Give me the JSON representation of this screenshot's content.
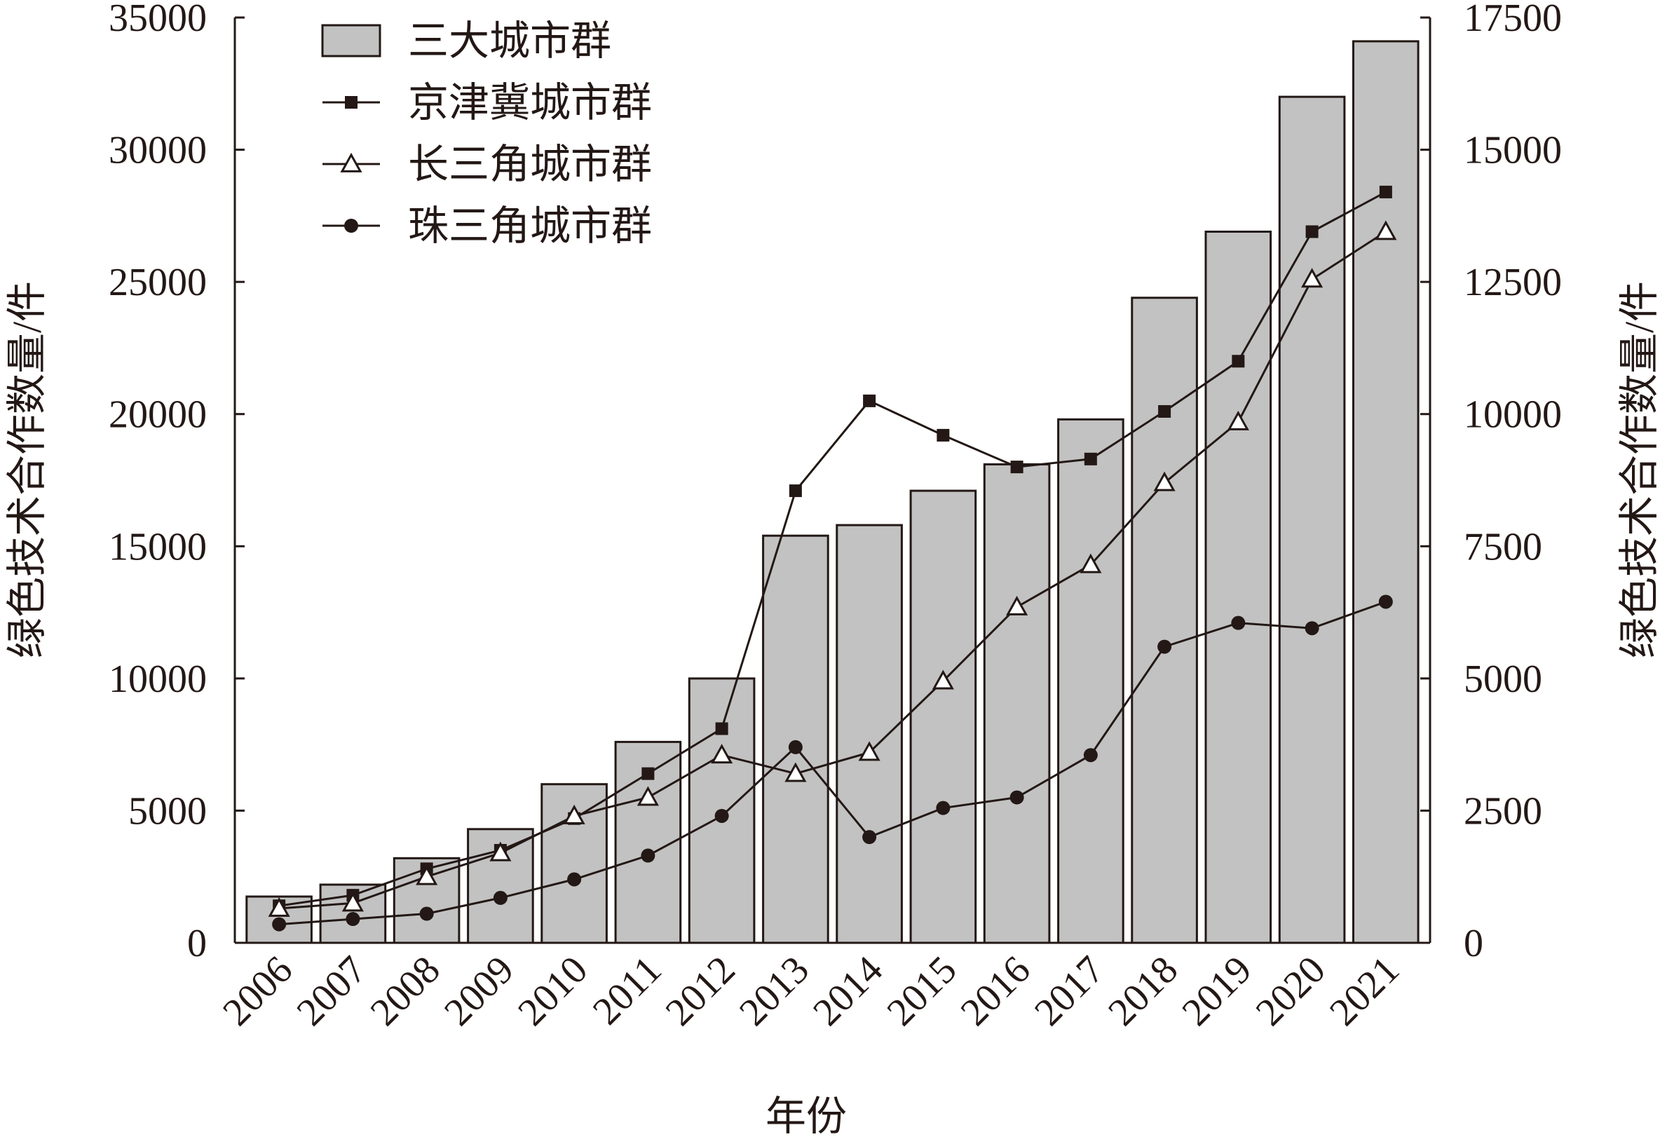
{
  "chart_data": {
    "type": "bar+line",
    "title": "",
    "xlabel": "年份",
    "ylabel_left": "绿色技术合作数量/件",
    "ylabel_right": "绿色技术合作数量/件",
    "categories": [
      "2006",
      "2007",
      "2008",
      "2009",
      "2010",
      "2011",
      "2012",
      "2013",
      "2014",
      "2015",
      "2016",
      "2017",
      "2018",
      "2019",
      "2020",
      "2021"
    ],
    "left_axis": {
      "ylim": [
        0,
        35000
      ],
      "ticks": [
        "0",
        "5000",
        "10000",
        "15000",
        "20000",
        "25000",
        "30000",
        "35000"
      ]
    },
    "right_axis": {
      "ylim": [
        0,
        17500
      ],
      "ticks": [
        "0",
        "2500",
        "5000",
        "7500",
        "10000",
        "12500",
        "15000",
        "17500"
      ]
    },
    "grid": false,
    "legend_position": "top-left",
    "series": [
      {
        "name": "三大城市群",
        "type": "bar",
        "axis": "left",
        "marker": "none",
        "color": "#c2c2c2",
        "values": [
          1750,
          2200,
          3200,
          4300,
          6000,
          7600,
          10000,
          15400,
          15800,
          17100,
          18100,
          19800,
          24400,
          26900,
          32000,
          34100
        ]
      },
      {
        "name": "京津冀城市群",
        "type": "line",
        "axis": "right",
        "marker": "square",
        "color": "#231815",
        "values": [
          700,
          900,
          1400,
          1750,
          2350,
          3200,
          4050,
          8550,
          10250,
          9600,
          9000,
          9150,
          10050,
          11000,
          13450,
          14200
        ]
      },
      {
        "name": "长三角城市群",
        "type": "line",
        "axis": "right",
        "marker": "triangle-open",
        "color": "#231815",
        "values": [
          650,
          750,
          1250,
          1700,
          2400,
          2750,
          3550,
          3200,
          3600,
          4950,
          6350,
          7150,
          8700,
          9850,
          12550,
          13450
        ]
      },
      {
        "name": "珠三角城市群",
        "type": "line",
        "axis": "right",
        "marker": "circle",
        "color": "#231815",
        "values": [
          350,
          450,
          550,
          850,
          1200,
          1650,
          2400,
          3700,
          2000,
          2550,
          2750,
          3550,
          5600,
          6050,
          5950,
          6450
        ]
      }
    ]
  }
}
